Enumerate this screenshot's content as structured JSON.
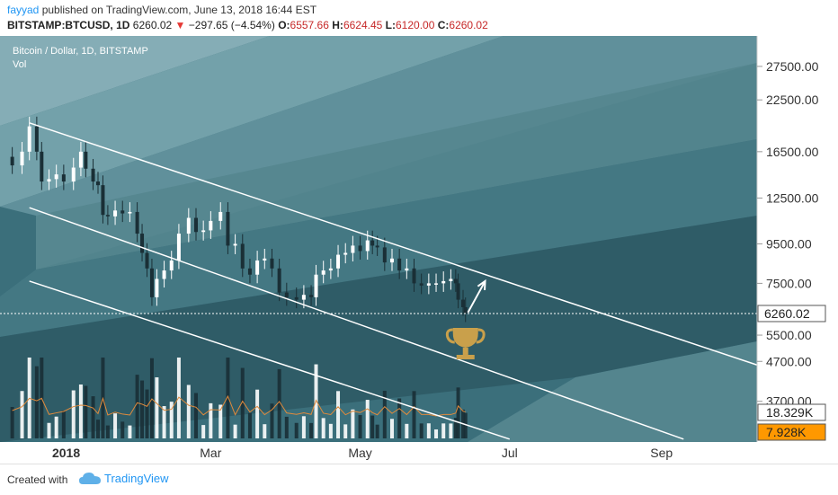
{
  "header": {
    "author": "fayyad",
    "published_text": "published on TradingView.com, June 13, 2018 16:44 EST",
    "symbol": "BITSTAMP:BTCUSD, 1D",
    "last": "6260.02",
    "arrow": "▼",
    "change": "−297.65 (−4.54%)",
    "o_label": "O:",
    "o_value": "6557.66",
    "h_label": "H:",
    "h_value": "6624.45",
    "l_label": "L:",
    "l_value": "6120.00",
    "c_label": "C:",
    "c_value": "6260.02"
  },
  "chart_legend": {
    "title": "Bitcoin / Dollar, 1D, BITSTAMP",
    "vol_label": "Vol"
  },
  "footer": {
    "created_with": "Created with",
    "brand": "TradingView"
  },
  "colors": {
    "background": "#3b6f7b",
    "axis_panel": "#ffffff",
    "up_candle": "#ffffff",
    "down_candle": "#1a2f36",
    "channel_line": "#ffffff",
    "price_label_bg": "#ffffff",
    "vol_label_bg": "#ff9800",
    "trophy": "#c9a04b"
  },
  "icons": {
    "trophy": "trophy-icon",
    "brand_logo": "cloud-logo-icon"
  },
  "chart_data": {
    "type": "candlestick",
    "title": "Bitcoin / Dollar, 1D, BITSTAMP",
    "y_scale": "log",
    "ylim": [
      2900,
      33000
    ],
    "y_ticks": [
      "27500.00",
      "22500.00",
      "16500.00",
      "12500.00",
      "9500.00",
      "7500.00",
      "5500.00",
      "4700.00",
      "3700.00"
    ],
    "x_ticks": [
      "2018",
      "Mar",
      "May",
      "Jul",
      "Sep"
    ],
    "x_range": [
      "2017-12-05",
      "2018-10-10"
    ],
    "last_price_label": "6260.02",
    "volume_labels": [
      "18.329K",
      "7.928K"
    ],
    "close_series": [
      [
        "2017-12-07",
        16000
      ],
      [
        "2017-12-10",
        15200
      ],
      [
        "2017-12-14",
        16500
      ],
      [
        "2017-12-17",
        19200
      ],
      [
        "2017-12-20",
        16500
      ],
      [
        "2017-12-22",
        13800
      ],
      [
        "2017-12-25",
        14000
      ],
      [
        "2017-12-28",
        14400
      ],
      [
        "2017-12-31",
        13800
      ],
      [
        "2018-01-04",
        15000
      ],
      [
        "2018-01-07",
        16500
      ],
      [
        "2018-01-09",
        14900
      ],
      [
        "2018-01-12",
        13800
      ],
      [
        "2018-01-14",
        13500
      ],
      [
        "2018-01-16",
        11300
      ],
      [
        "2018-01-18",
        11200
      ],
      [
        "2018-01-21",
        11600
      ],
      [
        "2018-01-24",
        11400
      ],
      [
        "2018-01-27",
        11500
      ],
      [
        "2018-01-30",
        10100
      ],
      [
        "2018-02-01",
        9000
      ],
      [
        "2018-02-03",
        8200
      ],
      [
        "2018-02-05",
        6900
      ],
      [
        "2018-02-07",
        7700
      ],
      [
        "2018-02-10",
        8100
      ],
      [
        "2018-02-13",
        8600
      ],
      [
        "2018-02-16",
        10100
      ],
      [
        "2018-02-20",
        11100
      ],
      [
        "2018-02-23",
        10200
      ],
      [
        "2018-02-26",
        10300
      ],
      [
        "2018-03-01",
        10900
      ],
      [
        "2018-03-05",
        11500
      ],
      [
        "2018-03-08",
        9400
      ],
      [
        "2018-03-11",
        9500
      ],
      [
        "2018-03-14",
        8200
      ],
      [
        "2018-03-17",
        7900
      ],
      [
        "2018-03-20",
        8600
      ],
      [
        "2018-03-23",
        8700
      ],
      [
        "2018-03-26",
        8200
      ],
      [
        "2018-03-29",
        7100
      ],
      [
        "2018-04-01",
        6900
      ],
      [
        "2018-04-05",
        6800
      ],
      [
        "2018-04-08",
        7000
      ],
      [
        "2018-04-11",
        6900
      ],
      [
        "2018-04-13",
        7900
      ],
      [
        "2018-04-16",
        8100
      ],
      [
        "2018-04-19",
        8200
      ],
      [
        "2018-04-22",
        8900
      ],
      [
        "2018-04-25",
        9000
      ],
      [
        "2018-04-28",
        9400
      ],
      [
        "2018-05-01",
        9100
      ],
      [
        "2018-05-04",
        9700
      ],
      [
        "2018-05-06",
        9400
      ],
      [
        "2018-05-08",
        9300
      ],
      [
        "2018-05-11",
        8500
      ],
      [
        "2018-05-14",
        8700
      ],
      [
        "2018-05-17",
        8100
      ],
      [
        "2018-05-20",
        8200
      ],
      [
        "2018-05-23",
        7500
      ],
      [
        "2018-05-26",
        7400
      ],
      [
        "2018-05-29",
        7500
      ],
      [
        "2018-06-01",
        7500
      ],
      [
        "2018-06-04",
        7600
      ],
      [
        "2018-06-07",
        7700
      ],
      [
        "2018-06-09",
        7500
      ],
      [
        "2018-06-10",
        6800
      ],
      [
        "2018-06-12",
        6500
      ],
      [
        "2018-06-13",
        6260
      ]
    ],
    "channel_lines": [
      {
        "from": [
          "2017-12-17",
          19600
        ],
        "to": [
          "2018-10-10",
          4600
        ]
      },
      {
        "from": [
          "2017-12-17",
          11800
        ],
        "to": [
          "2018-09-10",
          2950
        ]
      },
      {
        "from": [
          "2017-12-17",
          7600
        ],
        "to": [
          "2018-07-01",
          2950
        ]
      }
    ],
    "annotation": {
      "type": "arrow",
      "from": [
        "2018-06-14",
        6300
      ],
      "to": [
        "2018-06-21",
        7600
      ]
    }
  }
}
